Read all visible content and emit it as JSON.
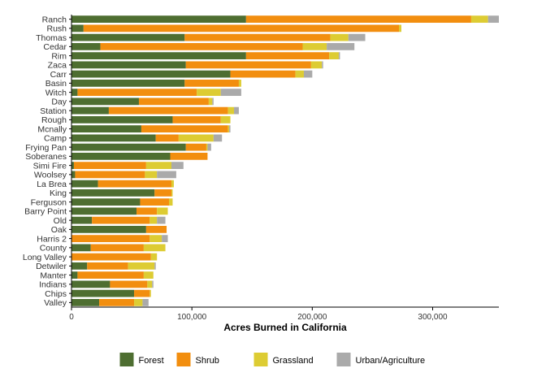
{
  "chart_data": {
    "type": "bar",
    "orientation": "horizontal",
    "stacked": true,
    "title": "",
    "xlabel": "Acres Burned in California",
    "ylabel": "",
    "xlim": [
      0,
      355000
    ],
    "xticks": [
      0,
      100000,
      200000,
      300000
    ],
    "xtick_labels": [
      "0",
      "100,000",
      "200,000",
      "300,000"
    ],
    "grid": false,
    "legend_position": "bottom",
    "categories": [
      "Ranch",
      "Rush",
      "Thomas",
      "Cedar",
      "Rim",
      "Zaca",
      "Carr",
      "Basin",
      "Witch",
      "Day",
      "Station",
      "Rough",
      "Mcnally",
      "Camp",
      "Frying Pan",
      "Soberanes",
      "Simi Fire",
      "Woolsey",
      "La Brea",
      "King",
      "Ferguson",
      "Barry Point",
      "Old",
      "Oak",
      "Harris 2",
      "County",
      "Long Valley",
      "Detwiler",
      "Manter",
      "Indians",
      "Chips",
      "Valley"
    ],
    "series": [
      {
        "name": "Forest",
        "color": "#4e6e31",
        "values": [
          145000,
          10000,
          94000,
          24000,
          145000,
          95000,
          132000,
          94000,
          5000,
          56000,
          31000,
          84000,
          58000,
          70000,
          95000,
          82000,
          2000,
          3000,
          22000,
          69000,
          57000,
          54000,
          17000,
          62000,
          0,
          16000,
          0,
          13000,
          5000,
          32000,
          52000,
          23000
        ]
      },
      {
        "name": "Shrub",
        "color": "#f28e0f",
        "values": [
          187000,
          262000,
          121000,
          168000,
          69000,
          104000,
          54000,
          45000,
          99000,
          58000,
          99000,
          40000,
          72000,
          19000,
          17000,
          31000,
          60000,
          58000,
          61000,
          14000,
          24000,
          17000,
          48000,
          17000,
          65000,
          44000,
          66000,
          34000,
          55000,
          31000,
          13000,
          29000
        ]
      },
      {
        "name": "Grassland",
        "color": "#ddcc33",
        "values": [
          14000,
          2000,
          15000,
          20000,
          8000,
          9000,
          7000,
          2000,
          20000,
          3000,
          5000,
          8000,
          1000,
          29000,
          1000,
          0,
          21000,
          10000,
          2000,
          1000,
          3000,
          9000,
          6000,
          0,
          10000,
          18000,
          5000,
          22000,
          8000,
          4000,
          1000,
          7000
        ]
      },
      {
        "name": "Urban/Agriculture",
        "color": "#aaaaaa",
        "values": [
          9000,
          0,
          14000,
          23000,
          1000,
          1000,
          7000,
          0,
          17000,
          1000,
          4000,
          0,
          1000,
          7000,
          3000,
          0,
          10000,
          16000,
          0,
          0,
          0,
          0,
          7000,
          0,
          5000,
          0,
          0,
          1000,
          0,
          1000,
          0,
          5000
        ]
      }
    ]
  }
}
